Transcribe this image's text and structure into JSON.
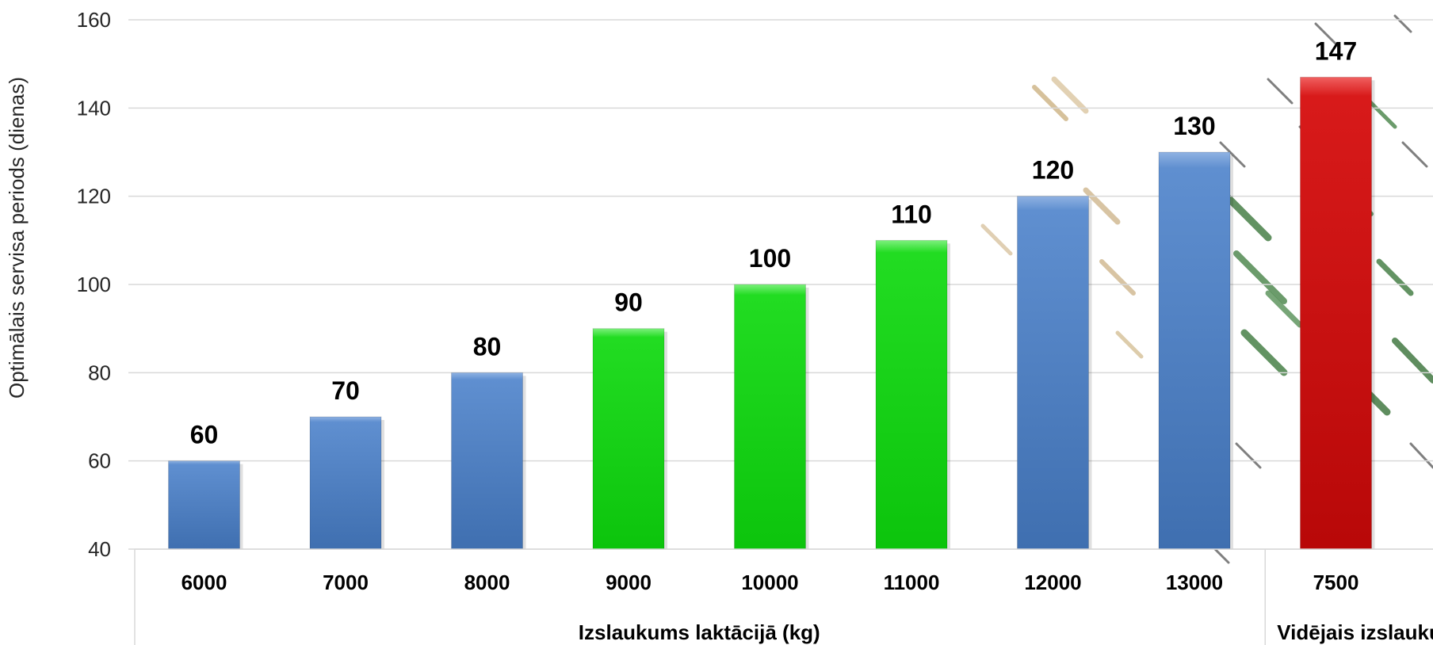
{
  "chart_data": {
    "type": "bar",
    "ylabel": "Optimālais servisa periods (dienas)",
    "ylim": [
      40,
      160
    ],
    "yticks": [
      40,
      60,
      80,
      100,
      120,
      140,
      160
    ],
    "grid": true,
    "categories": [
      "6000",
      "7000",
      "8000",
      "9000",
      "10000",
      "11000",
      "12000",
      "13000",
      "7500"
    ],
    "values": [
      60,
      70,
      80,
      90,
      100,
      110,
      120,
      130,
      147
    ],
    "bar_colors": [
      "#4a7ec4",
      "#4a7ec4",
      "#4a7ec4",
      "#1fd61f",
      "#1fd61f",
      "#1fd61f",
      "#4a7ec4",
      "#4a7ec4",
      "#d10f0f"
    ],
    "groups": [
      {
        "label": "Izslaukums laktācijā (kg)",
        "categories": [
          "6000",
          "7000",
          "8000",
          "9000",
          "10000",
          "11000",
          "12000",
          "13000"
        ]
      },
      {
        "label": "Vidējais izslaukums laktācijā LV, kg",
        "categories": [
          "7500"
        ]
      }
    ]
  },
  "colors": {
    "blue": "#4a7ec4",
    "green": "#1fd61f",
    "red": "#d10f0f",
    "grid": "#d9d9d9"
  }
}
